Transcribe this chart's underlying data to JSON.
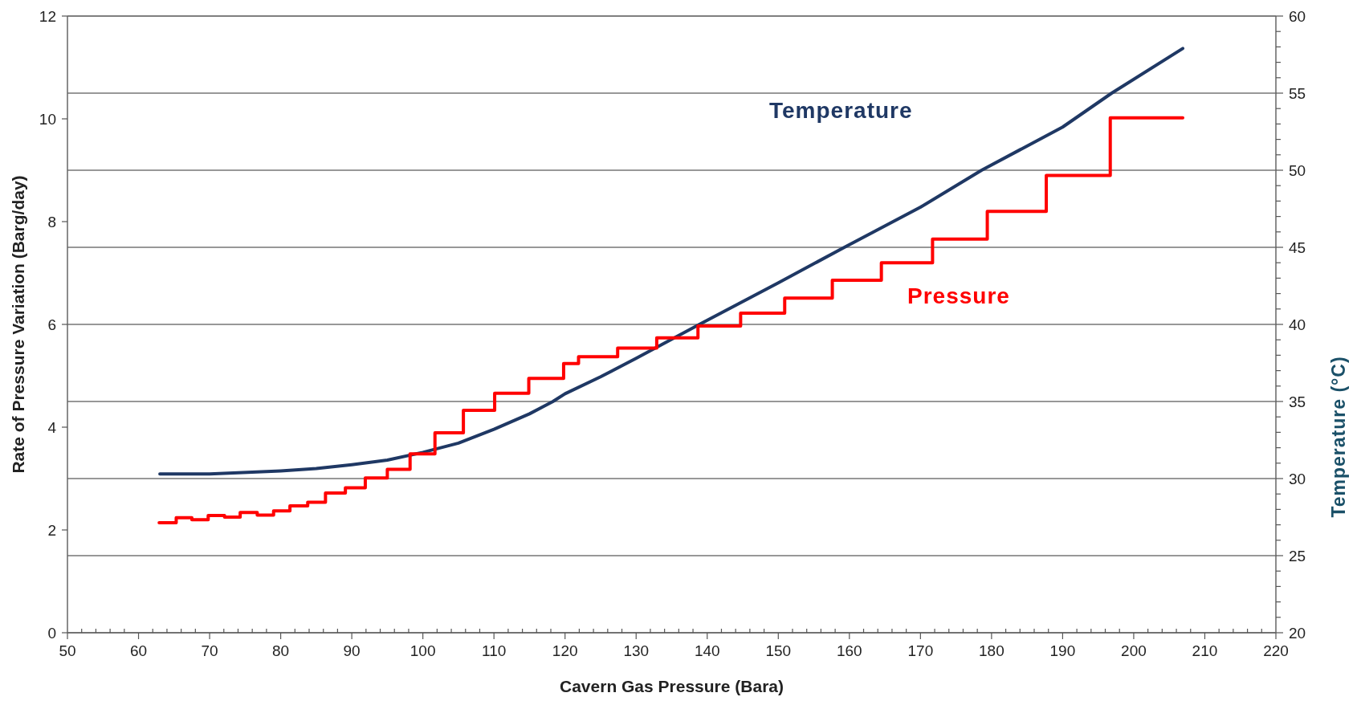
{
  "chart_data": {
    "type": "line",
    "xlabel": "Cavern Gas Pressure (Bara)",
    "ylabel": "Rate of Pressure Variation (Barg/day)",
    "y2label": "Temperature (°C)",
    "xlim": [
      50,
      220
    ],
    "xticks": [
      50,
      {
        "value": 52,
        "label": null
      },
      {
        "value": 54,
        "label": null
      },
      {
        "value": 56,
        "label": null
      },
      {
        "value": 58,
        "label": null
      },
      60,
      {
        "value": 62,
        "label": null
      },
      {
        "value": 64,
        "label": null
      },
      {
        "value": 66,
        "label": null
      },
      {
        "value": 68,
        "label": null
      },
      70,
      {
        "value": 72,
        "label": null
      },
      {
        "value": 74,
        "label": null
      },
      {
        "value": 76,
        "label": null
      },
      {
        "value": 78,
        "label": null
      },
      80,
      {
        "value": 82,
        "label": null
      },
      {
        "value": 84,
        "label": null
      },
      {
        "value": 86,
        "label": null
      },
      {
        "value": 88,
        "label": null
      },
      90,
      {
        "value": 92,
        "label": null
      },
      {
        "value": 94,
        "label": null
      },
      {
        "value": 96,
        "label": null
      },
      {
        "value": 98,
        "label": null
      },
      100,
      {
        "value": 102,
        "label": null
      },
      {
        "value": 104,
        "label": null
      },
      {
        "value": 106,
        "label": null
      },
      {
        "value": 108,
        "label": null
      },
      110,
      {
        "value": 112,
        "label": null
      },
      {
        "value": 114,
        "label": null
      },
      {
        "value": 116,
        "label": null
      },
      {
        "value": 118,
        "label": null
      },
      120,
      {
        "value": 122,
        "label": null
      },
      {
        "value": 124,
        "label": null
      },
      {
        "value": 126,
        "label": null
      },
      {
        "value": 128,
        "label": null
      },
      130,
      {
        "value": 132,
        "label": null
      },
      {
        "value": 134,
        "label": null
      },
      {
        "value": 136,
        "label": null
      },
      {
        "value": 138,
        "label": null
      },
      140,
      {
        "value": 142,
        "label": null
      },
      {
        "value": 144,
        "label": null
      },
      {
        "value": 146,
        "label": null
      },
      {
        "value": 148,
        "label": null
      },
      150,
      {
        "value": 152,
        "label": null
      },
      {
        "value": 154,
        "label": null
      },
      {
        "value": 156,
        "label": null
      },
      {
        "value": 158,
        "label": null
      },
      160,
      {
        "value": 162,
        "label": null
      },
      {
        "value": 164,
        "label": null
      },
      {
        "value": 166,
        "label": null
      },
      {
        "value": 168,
        "label": null
      },
      170,
      {
        "value": 172,
        "label": null
      },
      {
        "value": 174,
        "label": null
      },
      {
        "value": 176,
        "label": null
      },
      {
        "value": 178,
        "label": null
      },
      180,
      {
        "value": 182,
        "label": null
      },
      {
        "value": 184,
        "label": null
      },
      {
        "value": 186,
        "label": null
      },
      {
        "value": 188,
        "label": null
      },
      190,
      {
        "value": 192,
        "label": null
      },
      {
        "value": 194,
        "label": null
      },
      {
        "value": 196,
        "label": null
      },
      {
        "value": 198,
        "label": null
      },
      200,
      {
        "value": 202,
        "label": null
      },
      {
        "value": 204,
        "label": null
      },
      {
        "value": 206,
        "label": null
      },
      {
        "value": 208,
        "label": null
      },
      210,
      {
        "value": 212,
        "label": null
      },
      {
        "value": 214,
        "label": null
      },
      {
        "value": 216,
        "label": null
      },
      {
        "value": 218,
        "label": null
      },
      220
    ],
    "ylim": [
      0,
      12
    ],
    "yticks": [
      0,
      2,
      4,
      6,
      8,
      10,
      12
    ],
    "y2lim": [
      20,
      60
    ],
    "y2ticks": [
      20,
      {
        "value": 21,
        "label": null
      },
      {
        "value": 22,
        "label": null
      },
      {
        "value": 23,
        "label": null
      },
      {
        "value": 24,
        "label": null
      },
      25,
      {
        "value": 26,
        "label": null
      },
      {
        "value": 27,
        "label": null
      },
      {
        "value": 28,
        "label": null
      },
      {
        "value": 29,
        "label": null
      },
      30,
      {
        "value": 31,
        "label": null
      },
      {
        "value": 32,
        "label": null
      },
      {
        "value": 33,
        "label": null
      },
      {
        "value": 34,
        "label": null
      },
      35,
      {
        "value": 36,
        "label": null
      },
      {
        "value": 37,
        "label": null
      },
      {
        "value": 38,
        "label": null
      },
      {
        "value": 39,
        "label": null
      },
      40,
      {
        "value": 41,
        "label": null
      },
      {
        "value": 42,
        "label": null
      },
      {
        "value": 43,
        "label": null
      },
      {
        "value": 44,
        "label": null
      },
      45,
      {
        "value": 46,
        "label": null
      },
      {
        "value": 47,
        "label": null
      },
      {
        "value": 48,
        "label": null
      },
      {
        "value": 49,
        "label": null
      },
      50,
      {
        "value": 51,
        "label": null
      },
      {
        "value": 52,
        "label": null
      },
      {
        "value": 53,
        "label": null
      },
      {
        "value": 54,
        "label": null
      },
      55,
      {
        "value": 56,
        "label": null
      },
      {
        "value": 57,
        "label": null
      },
      {
        "value": 58,
        "label": null
      },
      {
        "value": 59,
        "label": null
      },
      60
    ],
    "grid": "y2",
    "marker": "none",
    "line_style": "solid",
    "series": [
      {
        "name": "Temperature",
        "axis": "y2",
        "color": "#1f3864",
        "x": [
          63,
          70,
          80,
          85,
          90,
          95,
          100,
          105,
          110,
          115,
          118.3,
          120,
          125,
          130,
          138.9,
          150,
          159.3,
          170,
          178.6,
          190,
          196.9,
          206.9
        ],
        "values": [
          30.3,
          30.3,
          30.5,
          30.65,
          30.9,
          31.2,
          31.7,
          32.3,
          33.2,
          34.2,
          35,
          35.5,
          36.6,
          37.8,
          40,
          42.7,
          45,
          47.6,
          50,
          52.8,
          55,
          57.9
        ]
      },
      {
        "name": "Pressure",
        "type": "step",
        "color": "#ff0000",
        "x": [
          62.9,
          65.3,
          67.5,
          69.8,
          72.1,
          74.3,
          76.7,
          79,
          81.3,
          83.8,
          86.3,
          89.1,
          91.9,
          95,
          98.2,
          101.7,
          105.7,
          110.1,
          114.9,
          119.8,
          121.9,
          127.4,
          132.9,
          138.7,
          144.7,
          150.9,
          157.6,
          164.5,
          171.7,
          179.4,
          187.7,
          196.7,
          206.9
        ],
        "values": [
          2.14,
          2.24,
          2.2,
          2.28,
          2.25,
          2.34,
          2.29,
          2.37,
          2.47,
          2.54,
          2.72,
          2.82,
          3.01,
          3.18,
          3.48,
          3.89,
          4.33,
          4.66,
          4.95,
          5.24,
          5.37,
          5.54,
          5.74,
          5.97,
          6.22,
          6.51,
          6.86,
          7.2,
          7.66,
          8.2,
          8.9,
          10.02,
          10.02
        ]
      }
    ]
  }
}
